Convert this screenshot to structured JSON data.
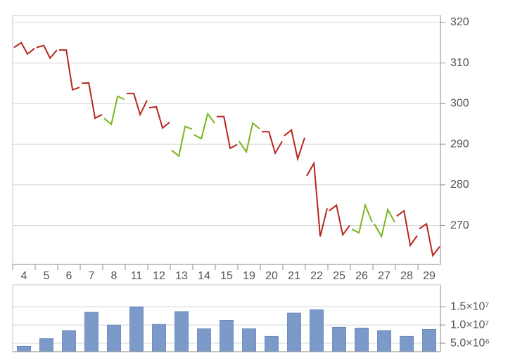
{
  "chart_data": [
    {
      "type": "ohlc",
      "categories": [
        "4",
        "5",
        "6",
        "7",
        "8",
        "11",
        "12",
        "13",
        "14",
        "15",
        "19",
        "20",
        "21",
        "22",
        "25",
        "26",
        "27",
        "28",
        "29"
      ],
      "open": [
        313.8,
        313.8,
        313.2,
        305,
        296.4,
        302.5,
        299,
        288.5,
        292.3,
        296.8,
        290.7,
        293.1,
        292.1,
        282.2,
        273.6,
        269.1,
        270.4,
        272.3,
        269.2
      ],
      "high": [
        315,
        314.3,
        313.2,
        305.1,
        301.8,
        302.5,
        299.2,
        294.4,
        297.5,
        296.8,
        295.2,
        293.1,
        293.5,
        285.3,
        275,
        275,
        273.9,
        273.6,
        270.4
      ],
      "low": [
        312.2,
        311.2,
        303.4,
        296.4,
        294.9,
        297.3,
        294,
        287.1,
        291.4,
        289,
        288.1,
        287.8,
        286.4,
        267.3,
        267.7,
        268.2,
        267.3,
        265.1,
        262.6
      ],
      "close": [
        313.6,
        313.2,
        304,
        297.3,
        301,
        300.8,
        295.4,
        293.7,
        295.2,
        289.9,
        293.8,
        290.7,
        291.6,
        274.2,
        270,
        270.8,
        270.8,
        267.5,
        264.8
      ],
      "up_color": "#7ab51d",
      "down_color": "#b5261e",
      "ylim": [
        260.4,
        321.7
      ],
      "yticks": [
        270,
        280,
        290,
        300,
        310,
        320
      ],
      "grid": true
    },
    {
      "type": "bar",
      "values": [
        4200000,
        6300000,
        8500000,
        13500000,
        10000000,
        15000000,
        10200000,
        13700000,
        9000000,
        11300000,
        9000000,
        6900000,
        13300000,
        14200000,
        9400000,
        9200000,
        8500000,
        6900000,
        8800000
      ],
      "color": "#7b9ac9",
      "ylim": [
        2700000,
        21000000
      ],
      "yticks": [
        {
          "value": 5000000,
          "label": "5.0×10⁶"
        },
        {
          "value": 10000000,
          "label": "1.0×10⁷"
        },
        {
          "value": 15000000,
          "label": "1.5×10⁷"
        }
      ],
      "grid": true
    }
  ]
}
